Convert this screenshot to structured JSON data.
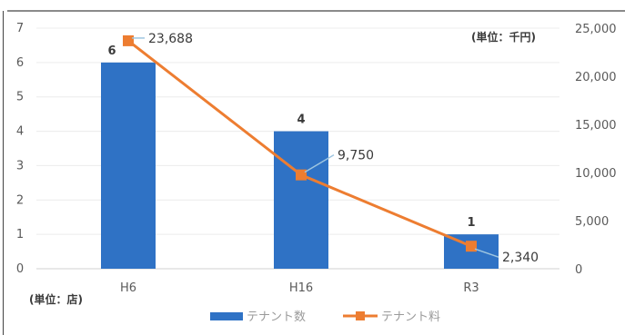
{
  "chart_data": {
    "type": "bar",
    "categories": [
      "H6",
      "H16",
      "R3"
    ],
    "series": [
      {
        "name": "テナント数",
        "type": "bar",
        "axis": "left",
        "values": [
          6,
          4,
          1
        ],
        "labels": [
          "6",
          "4",
          "1"
        ],
        "color": "#2F72C5"
      },
      {
        "name": "テナント料",
        "type": "line",
        "axis": "right",
        "values": [
          23688,
          9750,
          2340
        ],
        "labels": [
          "23,688",
          "9,750",
          "2,340"
        ],
        "color": "#ED7D31"
      }
    ],
    "y_left": {
      "min": 0,
      "max": 7,
      "ticks": [
        "0",
        "1",
        "2",
        "3",
        "4",
        "5",
        "6",
        "7"
      ],
      "unit_label": "(単位：店)"
    },
    "y_right": {
      "min": 0,
      "max": 25000,
      "ticks": [
        "0",
        "5,000",
        "10,000",
        "15,000",
        "20,000",
        "25,000"
      ],
      "unit_label": "(単位：千円)"
    },
    "grid": true,
    "legend": "bottom"
  }
}
